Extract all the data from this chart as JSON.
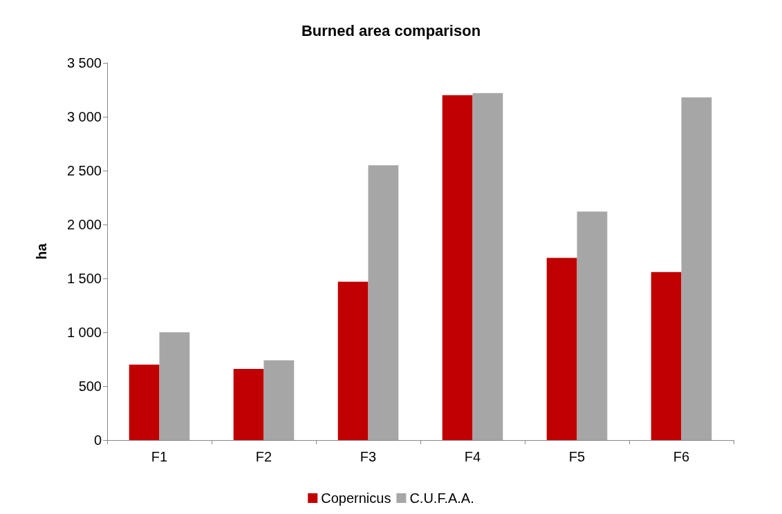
{
  "chart_data": {
    "type": "bar",
    "title": "Burned area comparison",
    "ylabel": "ha",
    "categories": [
      "F1",
      "F2",
      "F3",
      "F4",
      "F5",
      "F6"
    ],
    "series": [
      {
        "name": "Copernicus",
        "color": "#c00000",
        "values": [
          700,
          660,
          1470,
          3200,
          1690,
          1560
        ]
      },
      {
        "name": "C.U.F.A.A.",
        "color": "#a6a6a6",
        "values": [
          1000,
          740,
          2550,
          3220,
          2120,
          3180
        ]
      }
    ],
    "ylim": [
      0,
      3500
    ],
    "yticks": [
      0,
      500,
      {
        "value": 1000,
        "label": "1 000"
      },
      {
        "value": 1500,
        "label": "1 500"
      },
      {
        "value": 2000,
        "label": "2 000"
      },
      {
        "value": 2500,
        "label": "2 500"
      },
      {
        "value": 3000,
        "label": "3 000"
      },
      {
        "value": 3500,
        "label": "3 500"
      }
    ],
    "grid": false,
    "legend": "bottom"
  }
}
